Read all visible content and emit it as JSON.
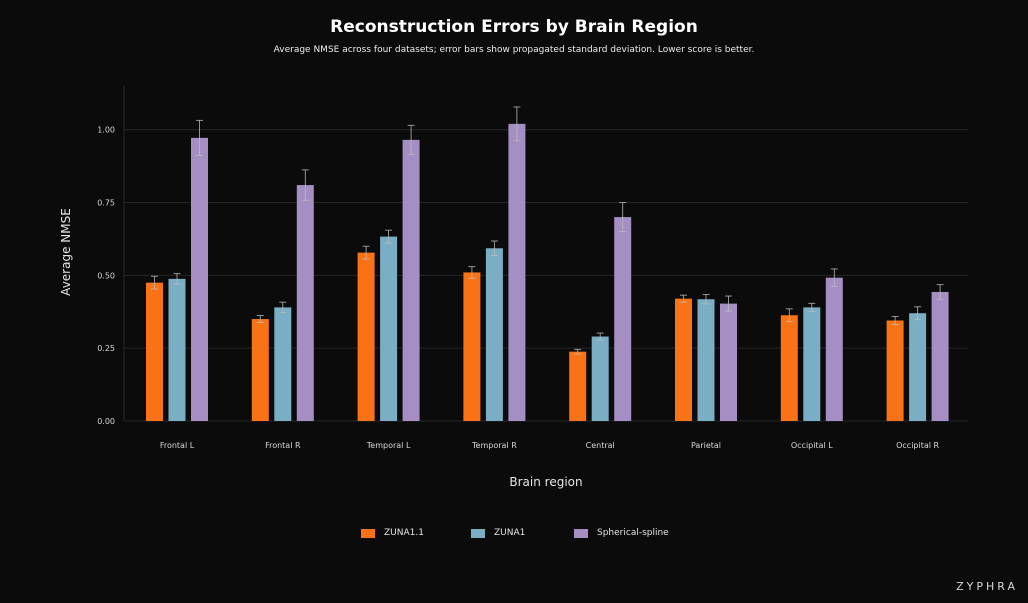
{
  "chart_data": {
    "type": "bar",
    "title": "Reconstruction Errors by Brain Region",
    "subtitle": "Average NMSE across four datasets; error bars show propagated standard deviation. Lower score is better.",
    "xlabel": "Brain region",
    "ylabel": "Average NMSE",
    "ylim": [
      0,
      1.15
    ],
    "yticks": [
      "0.00",
      "0.25",
      "0.50",
      "0.75",
      "1.00"
    ],
    "ytick_values": [
      0,
      0.25,
      0.5,
      0.75,
      1.0
    ],
    "grid": true,
    "legend_position": "bottom-center",
    "categories": [
      "Frontal L",
      "Frontal R",
      "Temporal L",
      "Temporal R",
      "Central",
      "Parietal",
      "Occipital L",
      "Occipital R"
    ],
    "series": [
      {
        "name": "ZUNA1.1",
        "color": "#f97316",
        "values": [
          0.475,
          0.35,
          0.578,
          0.51,
          0.238,
          0.42,
          0.363,
          0.345
        ],
        "errors": [
          0.022,
          0.012,
          0.022,
          0.02,
          0.008,
          0.012,
          0.022,
          0.014
        ]
      },
      {
        "name": "ZUNA1",
        "color": "#7aaec4",
        "values": [
          0.488,
          0.39,
          0.633,
          0.593,
          0.29,
          0.418,
          0.39,
          0.37
        ],
        "errors": [
          0.018,
          0.018,
          0.022,
          0.025,
          0.012,
          0.016,
          0.014,
          0.022
        ]
      },
      {
        "name": "Spherical-spline",
        "color": "#a48ec3",
        "values": [
          0.972,
          0.81,
          0.965,
          1.02,
          0.7,
          0.403,
          0.492,
          0.443
        ],
        "errors": [
          0.06,
          0.052,
          0.05,
          0.058,
          0.05,
          0.026,
          0.03,
          0.025
        ]
      }
    ]
  },
  "brand": "ZYPHRA"
}
